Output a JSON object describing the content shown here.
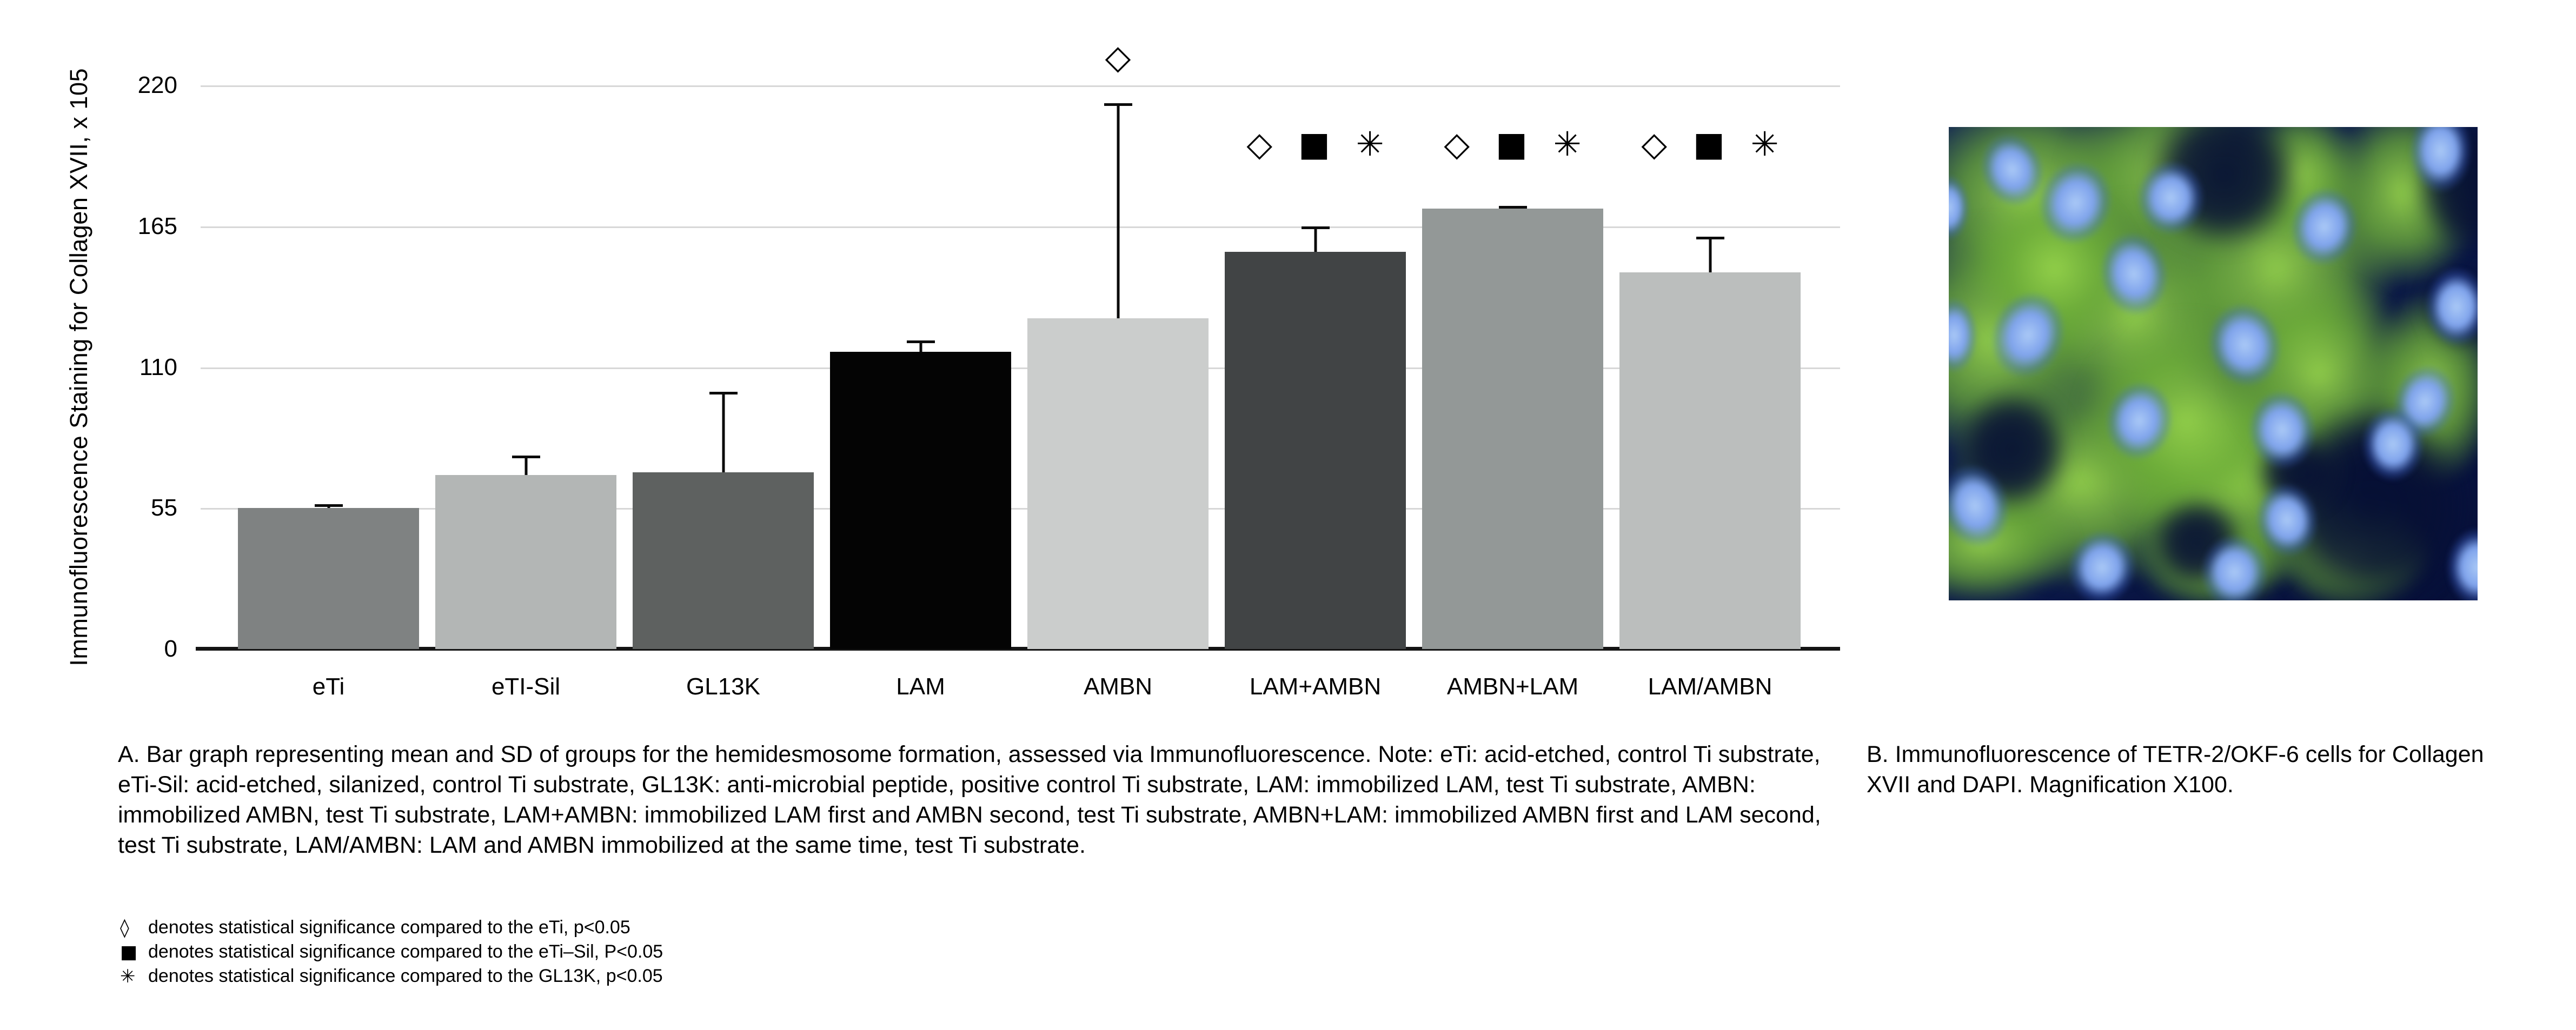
{
  "figure": {
    "panel_a_caption": "A. Bar graph representing mean and SD of groups for the hemidesmosome formation, assessed via Immunofluorescence. Note: eTi: acid-etched, control Ti substrate, eTi-Sil: acid-etched, silanized, control Ti substrate, GL13K: anti-microbial peptide, positive control Ti substrate, LAM: immobilized LAM, test Ti substrate, AMBN: immobilized AMBN, test Ti substrate, LAM+AMBN: immobilized LAM first and AMBN second, test Ti substrate, AMBN+LAM: immobilized AMBN first and LAM second, test Ti substrate, LAM/AMBN: LAM and AMBN immobilized at the same time, test Ti substrate.",
    "panel_b_caption": "B. Immunofluorescence of TETR-2/OKF-6 cells for Collagen XVII and DAPI. Magnification X100.",
    "significance_legend": [
      {
        "symbol": "◊",
        "icon": "diamond-icon",
        "text": "denotes statistical significance compared to the eTi, p<0.05"
      },
      {
        "symbol": "■",
        "icon": "square-icon",
        "text": "denotes statistical significance compared to the eTi–Sil, P<0.05"
      },
      {
        "symbol": "✳",
        "icon": "asterisk-icon",
        "text": "denotes statistical significance compared to the GL13K, p<0.05"
      }
    ]
  },
  "chart_data": {
    "type": "bar",
    "title": "",
    "xlabel": "",
    "ylabel": "Immunofluorescence Staining for Collagen XVII, x 105",
    "ylim": [
      0,
      220
    ],
    "yticks": [
      0,
      55,
      110,
      165,
      220
    ],
    "grid": true,
    "legend_position": "none",
    "categories": [
      "eTi",
      "eTI-Sil",
      "GL13K",
      "LAM",
      "AMBN",
      "LAM+AMBN",
      "AMBN+LAM",
      "LAM/AMBN"
    ],
    "values": [
      55,
      68,
      69,
      116,
      129,
      155,
      172,
      147
    ],
    "sd_upper": [
      1.5,
      7.5,
      31.5,
      4.5,
      84,
      10,
      1,
      14
    ],
    "bar_colors": [
      "#7f8282",
      "#b3b6b5",
      "#5e6160",
      "#040404",
      "#cbcdcc",
      "#414445",
      "#939897",
      "#bbbebd"
    ],
    "error_bar_color": "#0a0a0a",
    "gridline_color": "#d7d7d7",
    "significance_marks": [
      {
        "category": "AMBN",
        "symbols": [
          "◇"
        ],
        "y": 231
      },
      {
        "category": "LAM+AMBN",
        "symbols": [
          "◇",
          "■",
          "✳"
        ],
        "y": 197
      },
      {
        "category": "AMBN+LAM",
        "symbols": [
          "◇",
          "■",
          "✳"
        ],
        "y": 197
      },
      {
        "category": "LAM/AMBN",
        "symbols": [
          "◇",
          "■",
          "✳"
        ],
        "y": 197
      }
    ]
  },
  "micrograph": {
    "description": "fluorescence micrograph, green Collagen XVII cytoplasm with blue DAPI nuclei",
    "background_color": "#0a1748",
    "cytoplasm_color": "#8fd14f",
    "nucleus_color": "#7fa3ec",
    "cells": [
      [
        15,
        15,
        48,
        46
      ],
      [
        42,
        10,
        42,
        40
      ],
      [
        8,
        45,
        42,
        52
      ],
      [
        35,
        40,
        46,
        52
      ],
      [
        62,
        30,
        46,
        56
      ],
      [
        25,
        75,
        52,
        46
      ],
      [
        55,
        75,
        46,
        46
      ],
      [
        86,
        14,
        30,
        40
      ],
      [
        91,
        55,
        26,
        42
      ],
      [
        45,
        62,
        42,
        46
      ],
      [
        70,
        52,
        36,
        42
      ],
      [
        6,
        88,
        36,
        26
      ],
      [
        76,
        90,
        30,
        24
      ],
      [
        20,
        30,
        32,
        36
      ],
      [
        66,
        10,
        26,
        30
      ],
      [
        50,
        92,
        30,
        20
      ]
    ],
    "dark_patches": [
      [
        52,
        10,
        30,
        32
      ],
      [
        99,
        12,
        22,
        30
      ],
      [
        80,
        80,
        38,
        44
      ],
      [
        12,
        68,
        22,
        26
      ],
      [
        47,
        88,
        18,
        20
      ],
      [
        97,
        38,
        14,
        18
      ],
      [
        66,
        73,
        16,
        16
      ]
    ],
    "nuclei": [
      [
        12,
        9,
        6,
        8,
        -20
      ],
      [
        24,
        16,
        7,
        9,
        15
      ],
      [
        42,
        15,
        6.5,
        8,
        0
      ],
      [
        71,
        21,
        6.5,
        8.5,
        10
      ],
      [
        93,
        5,
        6,
        9,
        0
      ],
      [
        35,
        31,
        6.5,
        9,
        -10
      ],
      [
        15,
        44,
        7,
        9.5,
        20
      ],
      [
        0,
        17,
        4,
        7,
        0
      ],
      [
        1,
        44,
        4.5,
        8,
        0
      ],
      [
        56,
        46,
        7,
        9,
        -15
      ],
      [
        96,
        38,
        6,
        8.5,
        0
      ],
      [
        36,
        62,
        6.5,
        8.5,
        10
      ],
      [
        63,
        64,
        6.5,
        8.5,
        -5
      ],
      [
        90,
        58,
        6,
        8,
        15
      ],
      [
        84,
        67,
        6,
        8,
        0
      ],
      [
        5,
        80,
        6.5,
        9,
        -15
      ],
      [
        29,
        93,
        6.5,
        8,
        10
      ],
      [
        54,
        94,
        6.5,
        8,
        0
      ],
      [
        64,
        83,
        6,
        8,
        -10
      ],
      [
        100,
        93,
        6,
        8.5,
        0
      ]
    ]
  }
}
